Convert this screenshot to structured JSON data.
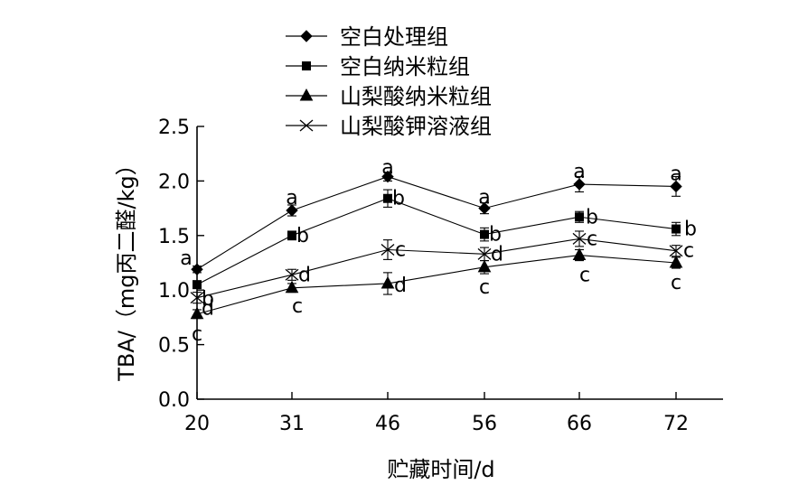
{
  "chart_data": {
    "type": "line",
    "xlabel": "贮藏时间/d",
    "ylabel": "TBA/（mg丙二醛/kg）",
    "x": [
      20,
      31,
      46,
      56,
      66,
      72
    ],
    "x_tick_labels": [
      "20",
      "31",
      "46",
      "56",
      "66",
      "72"
    ],
    "ylim": [
      0.0,
      2.5
    ],
    "y_ticks": [
      0.0,
      0.5,
      1.0,
      1.5,
      2.0,
      2.5
    ],
    "y_tick_labels": [
      "0.0",
      "0.5",
      "1.0",
      "1.5",
      "2.0",
      "2.5"
    ],
    "grid": false,
    "legend_position": "top-center",
    "series": [
      {
        "name": "空白处理组",
        "marker": "diamond",
        "values": [
          1.19,
          1.73,
          2.04,
          1.75,
          1.97,
          1.95
        ],
        "errors": [
          0.03,
          0.05,
          0.04,
          0.05,
          0.07,
          0.09
        ],
        "labels": [
          "a",
          "a",
          "a",
          "a",
          "a",
          "a"
        ]
      },
      {
        "name": "空白纳米粒组",
        "marker": "square",
        "values": [
          1.05,
          1.5,
          1.84,
          1.51,
          1.67,
          1.56
        ],
        "errors": [
          0.03,
          0.04,
          0.08,
          0.06,
          0.05,
          0.06
        ],
        "labels": [
          "b",
          "b",
          "b",
          "b",
          "b",
          "b"
        ]
      },
      {
        "name": "山梨酸纳米粒组",
        "marker": "triangle",
        "values": [
          0.78,
          1.02,
          1.06,
          1.21,
          1.32,
          1.25
        ],
        "errors": [
          0.04,
          0.04,
          0.1,
          0.06,
          0.05,
          0.05
        ],
        "labels": [
          "c",
          "c",
          "d",
          "c",
          "c",
          "c"
        ]
      },
      {
        "name": "山梨酸钾溶液组",
        "marker": "x",
        "values": [
          0.93,
          1.14,
          1.37,
          1.33,
          1.47,
          1.36
        ],
        "errors": [
          0.05,
          0.05,
          0.09,
          0.06,
          0.07,
          0.05
        ],
        "labels": [
          "d",
          "d",
          "c",
          "d",
          "c",
          "c"
        ]
      }
    ]
  }
}
